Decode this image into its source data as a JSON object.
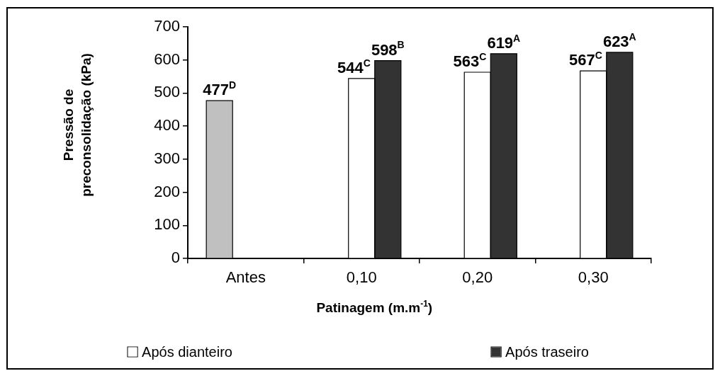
{
  "chart_data": {
    "type": "bar",
    "categories": [
      "Antes",
      "0,10",
      "0,20",
      "0,30"
    ],
    "series": [
      {
        "color": "#c0c0c0",
        "values": [
          477,
          null,
          null,
          null
        ],
        "value_labels": [
          "477$^{D}$",
          null,
          null,
          null
        ]
      },
      {
        "name": "Após dianteiro",
        "color": "#ffffff",
        "values": [
          null,
          544,
          563,
          567
        ],
        "value_labels": [
          null,
          "544$^{C}$",
          "563$^{C}$",
          "567$^{C}$"
        ]
      },
      {
        "name": "Após traseiro",
        "color": "#333333",
        "values": [
          null,
          598,
          619,
          623
        ],
        "value_labels": [
          null,
          "598$^{B}$",
          "619$^{A}$",
          "623$^{A}$"
        ]
      }
    ],
    "xlabel": "Patinagem (m.m$^{-1}$)",
    "ylabel": "Pressão de preconsolidação (kPa)",
    "ylim": [
      0,
      700
    ],
    "yticks": [
      0,
      100,
      200,
      300,
      400,
      500,
      600,
      700
    ],
    "legend": "bottom"
  }
}
